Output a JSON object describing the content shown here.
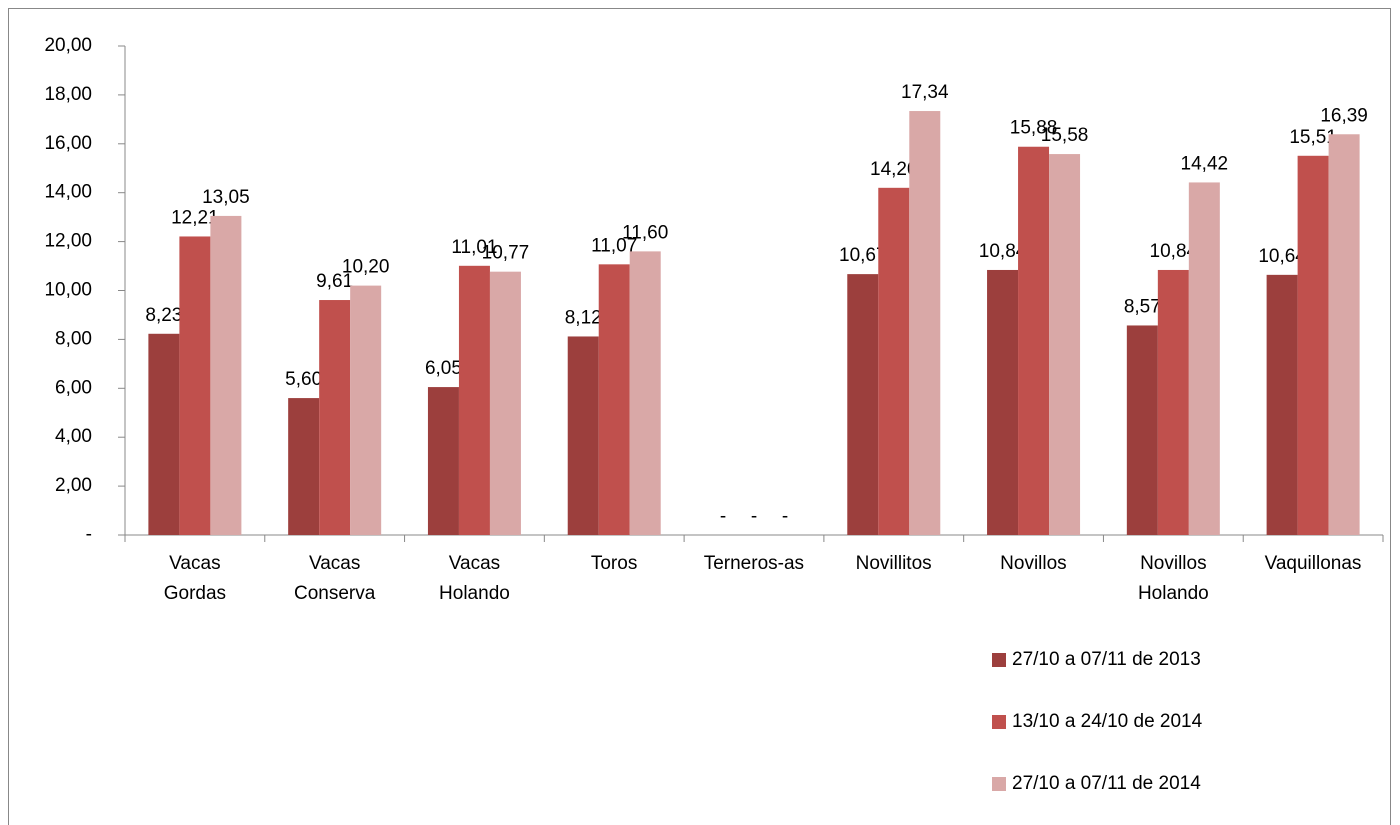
{
  "chart_data": {
    "type": "bar",
    "categories": [
      "Vacas Gordas",
      "Vacas Conserva",
      "Vacas Holando",
      "Toros",
      "Terneros-as",
      "Novillitos",
      "Novillos",
      "Novillos Holando",
      "Vaquillonas"
    ],
    "series": [
      {
        "name": "27/10 a 07/11 de 2013",
        "color": "#9c3f3d",
        "values": [
          8.23,
          5.6,
          6.05,
          8.12,
          0,
          10.67,
          10.84,
          8.57,
          10.64
        ],
        "value_labels": [
          "8,23",
          "5,60",
          "6,05",
          "8,12",
          "-",
          "10,67",
          "10,84",
          "8,57",
          "10,64"
        ]
      },
      {
        "name": "13/10 a 24/10 de 2014",
        "color": "#c0504d",
        "values": [
          12.21,
          9.61,
          11.01,
          11.07,
          0,
          14.2,
          15.88,
          10.84,
          15.51
        ],
        "value_labels": [
          "12,21",
          "9,61",
          "11,01",
          "11,07",
          "-",
          "14,20",
          "15,88",
          "10,84",
          "15,51"
        ]
      },
      {
        "name": "27/10 a 07/11 de 2014",
        "color": "#d9a8a7",
        "values": [
          13.05,
          10.2,
          10.77,
          11.6,
          0,
          17.34,
          15.58,
          14.42,
          16.39
        ],
        "value_labels": [
          "13,05",
          "10,20",
          "10,77",
          "11,60",
          "-",
          "17,34",
          "15,58",
          "14,42",
          "16,39"
        ]
      }
    ],
    "ylim": [
      0,
      20
    ],
    "yticks": [
      {
        "value": 0,
        "label": "-"
      },
      {
        "value": 2,
        "label": "2,00"
      },
      {
        "value": 4,
        "label": "4,00"
      },
      {
        "value": 6,
        "label": "6,00"
      },
      {
        "value": 8,
        "label": "8,00"
      },
      {
        "value": 10,
        "label": "10,00"
      },
      {
        "value": 12,
        "label": "12,00"
      },
      {
        "value": 14,
        "label": "14,00"
      },
      {
        "value": 16,
        "label": "16,00"
      },
      {
        "value": 18,
        "label": "18,00"
      },
      {
        "value": 20,
        "label": "20,00"
      }
    ],
    "grid": false,
    "legend": "bottom-right"
  }
}
